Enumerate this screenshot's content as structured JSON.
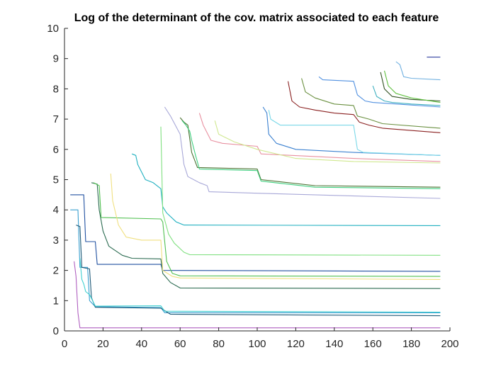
{
  "chart_data": {
    "type": "line",
    "title": "Log of the determinant of the cov. matrix associated to each feature",
    "xlabel": "",
    "ylabel": "",
    "xlim": [
      0,
      200
    ],
    "ylim": [
      0,
      10
    ],
    "xticks": [
      0,
      20,
      40,
      60,
      80,
      100,
      120,
      140,
      160,
      180,
      200
    ],
    "yticks": [
      0,
      1,
      2,
      3,
      4,
      5,
      6,
      7,
      8,
      9,
      10
    ],
    "grid": false,
    "legend": "none",
    "series": [
      {
        "color": "#b060c0",
        "points": [
          [
            5,
            2.3
          ],
          [
            6,
            1.8
          ],
          [
            7,
            0.6
          ],
          [
            8,
            0.1
          ],
          [
            20,
            0.1
          ],
          [
            195,
            0.1
          ]
        ]
      },
      {
        "color": "#2050a0",
        "points": [
          [
            3,
            4.5
          ],
          [
            10,
            4.5
          ],
          [
            11,
            2.95
          ],
          [
            16,
            2.95
          ],
          [
            17,
            2.2
          ],
          [
            50,
            2.2
          ],
          [
            51,
            2.0
          ],
          [
            195,
            1.97
          ]
        ]
      },
      {
        "color": "#3aa0d0",
        "points": [
          [
            3,
            4.0
          ],
          [
            7,
            4.0
          ],
          [
            8,
            2.1
          ],
          [
            12,
            2.1
          ],
          [
            13,
            1.0
          ],
          [
            16,
            0.8
          ],
          [
            50,
            0.77
          ],
          [
            52,
            0.6
          ],
          [
            195,
            0.6
          ]
        ]
      },
      {
        "color": "#1f5a78",
        "points": [
          [
            6,
            3.5
          ],
          [
            8,
            3.45
          ],
          [
            9,
            2.1
          ],
          [
            13,
            2.05
          ],
          [
            14,
            1.1
          ],
          [
            16,
            0.78
          ],
          [
            50,
            0.75
          ],
          [
            55,
            0.55
          ],
          [
            195,
            0.5
          ]
        ]
      },
      {
        "color": "#40d0d0",
        "points": [
          [
            8,
            2.4
          ],
          [
            9,
            1.7
          ],
          [
            10,
            1.55
          ],
          [
            11,
            1.3
          ],
          [
            13,
            1.2
          ],
          [
            16,
            0.82
          ],
          [
            50,
            0.83
          ],
          [
            52,
            0.65
          ],
          [
            195,
            0.62
          ]
        ]
      },
      {
        "color": "#2a6a50",
        "points": [
          [
            14,
            4.9
          ],
          [
            17,
            4.85
          ],
          [
            18,
            4.0
          ],
          [
            20,
            3.3
          ],
          [
            23,
            2.8
          ],
          [
            30,
            2.5
          ],
          [
            35,
            2.4
          ],
          [
            50,
            2.38
          ],
          [
            51,
            1.9
          ],
          [
            55,
            1.6
          ],
          [
            60,
            1.42
          ],
          [
            195,
            1.4
          ]
        ]
      },
      {
        "color": "#50c050",
        "points": [
          [
            15,
            4.9
          ],
          [
            18,
            4.8
          ],
          [
            19,
            3.75
          ],
          [
            50,
            3.7
          ],
          [
            51,
            3.6
          ],
          [
            53,
            2.3
          ],
          [
            56,
            1.9
          ],
          [
            60,
            1.82
          ],
          [
            195,
            1.8
          ]
        ]
      },
      {
        "color": "#f0e080",
        "points": [
          [
            24,
            5.2
          ],
          [
            25,
            4.3
          ],
          [
            28,
            3.5
          ],
          [
            32,
            3.1
          ],
          [
            40,
            3.0
          ],
          [
            50,
            3.0
          ],
          [
            51,
            2.0
          ],
          [
            56,
            1.8
          ],
          [
            60,
            1.75
          ],
          [
            195,
            1.7
          ]
        ]
      },
      {
        "color": "#20b0c0",
        "points": [
          [
            35,
            5.85
          ],
          [
            37,
            5.8
          ],
          [
            38,
            5.5
          ],
          [
            42,
            5.0
          ],
          [
            46,
            4.9
          ],
          [
            50,
            4.7
          ],
          [
            51,
            4.1
          ],
          [
            53,
            3.9
          ],
          [
            58,
            3.6
          ],
          [
            62,
            3.5
          ],
          [
            195,
            3.48
          ]
        ]
      },
      {
        "color": "#80e080",
        "points": [
          [
            50,
            6.75
          ],
          [
            51,
            3.9
          ],
          [
            54,
            3.2
          ],
          [
            57,
            2.9
          ],
          [
            62,
            2.6
          ],
          [
            65,
            2.52
          ],
          [
            195,
            2.5
          ]
        ]
      },
      {
        "color": "#a8a8d8",
        "points": [
          [
            52,
            7.4
          ],
          [
            55,
            7.1
          ],
          [
            60,
            6.5
          ],
          [
            62,
            5.5
          ],
          [
            64,
            5.1
          ],
          [
            70,
            4.9
          ],
          [
            74,
            4.8
          ],
          [
            75,
            4.6
          ],
          [
            100,
            4.55
          ],
          [
            195,
            4.38
          ]
        ]
      },
      {
        "color": "#4a7030",
        "points": [
          [
            60,
            7.05
          ],
          [
            62,
            6.9
          ],
          [
            64,
            6.8
          ],
          [
            66,
            5.9
          ],
          [
            69,
            5.4
          ],
          [
            100,
            5.35
          ],
          [
            102,
            5.0
          ],
          [
            130,
            4.8
          ],
          [
            195,
            4.75
          ]
        ]
      },
      {
        "color": "#40d080",
        "points": [
          [
            61,
            6.95
          ],
          [
            63,
            6.8
          ],
          [
            65,
            6.6
          ],
          [
            66,
            6.3
          ],
          [
            68,
            5.8
          ],
          [
            70,
            5.35
          ],
          [
            100,
            5.3
          ],
          [
            102,
            4.95
          ],
          [
            130,
            4.75
          ],
          [
            195,
            4.7
          ]
        ]
      },
      {
        "color": "#e890a0",
        "points": [
          [
            70,
            7.2
          ],
          [
            72,
            6.8
          ],
          [
            76,
            6.3
          ],
          [
            82,
            6.2
          ],
          [
            100,
            6.1
          ],
          [
            102,
            5.85
          ],
          [
            150,
            5.7
          ],
          [
            195,
            5.6
          ]
        ]
      },
      {
        "color": "#d0e890",
        "points": [
          [
            78,
            6.95
          ],
          [
            80,
            6.5
          ],
          [
            88,
            6.25
          ],
          [
            100,
            6.0
          ],
          [
            120,
            5.7
          ],
          [
            150,
            5.6
          ],
          [
            195,
            5.55
          ]
        ]
      },
      {
        "color": "#3a80d0",
        "points": [
          [
            103,
            7.4
          ],
          [
            105,
            7.2
          ],
          [
            106,
            6.5
          ],
          [
            110,
            6.2
          ],
          [
            120,
            6.0
          ],
          [
            150,
            5.9
          ],
          [
            195,
            5.8
          ]
        ]
      },
      {
        "color": "#7ad8e8",
        "points": [
          [
            106,
            7.3
          ],
          [
            107,
            7.0
          ],
          [
            112,
            6.8
          ],
          [
            150,
            6.8
          ],
          [
            152,
            6.0
          ],
          [
            155,
            5.9
          ],
          [
            195,
            5.8
          ]
        ]
      },
      {
        "color": "#8a2020",
        "points": [
          [
            116,
            8.25
          ],
          [
            118,
            7.6
          ],
          [
            122,
            7.4
          ],
          [
            130,
            7.3
          ],
          [
            140,
            7.2
          ],
          [
            150,
            7.15
          ],
          [
            153,
            6.9
          ],
          [
            158,
            6.8
          ],
          [
            165,
            6.7
          ],
          [
            195,
            6.55
          ]
        ]
      },
      {
        "color": "#6a9040",
        "points": [
          [
            123,
            8.35
          ],
          [
            125,
            7.9
          ],
          [
            130,
            7.7
          ],
          [
            140,
            7.5
          ],
          [
            150,
            7.45
          ],
          [
            152,
            7.1
          ],
          [
            158,
            7.0
          ],
          [
            165,
            6.85
          ],
          [
            195,
            6.7
          ]
        ]
      },
      {
        "color": "#5090e0",
        "points": [
          [
            132,
            8.4
          ],
          [
            134,
            8.3
          ],
          [
            150,
            8.25
          ],
          [
            152,
            7.8
          ],
          [
            156,
            7.6
          ],
          [
            160,
            7.55
          ],
          [
            195,
            7.4
          ]
        ]
      },
      {
        "color": "#40b0c0",
        "points": [
          [
            160,
            8.1
          ],
          [
            162,
            7.75
          ],
          [
            166,
            7.6
          ],
          [
            170,
            7.55
          ],
          [
            180,
            7.5
          ],
          [
            195,
            7.45
          ]
        ]
      },
      {
        "color": "#305020",
        "points": [
          [
            164,
            8.55
          ],
          [
            166,
            8.0
          ],
          [
            170,
            7.75
          ],
          [
            180,
            7.65
          ],
          [
            195,
            7.6
          ]
        ]
      },
      {
        "color": "#60c040",
        "points": [
          [
            166,
            8.6
          ],
          [
            168,
            8.1
          ],
          [
            172,
            7.85
          ],
          [
            180,
            7.7
          ],
          [
            195,
            7.55
          ]
        ]
      },
      {
        "color": "#70b0e0",
        "points": [
          [
            172,
            8.9
          ],
          [
            174,
            8.8
          ],
          [
            176,
            8.4
          ],
          [
            180,
            8.35
          ],
          [
            195,
            8.3
          ]
        ]
      },
      {
        "color": "#3040a0",
        "points": [
          [
            188,
            9.05
          ],
          [
            195,
            9.05
          ]
        ]
      }
    ]
  }
}
